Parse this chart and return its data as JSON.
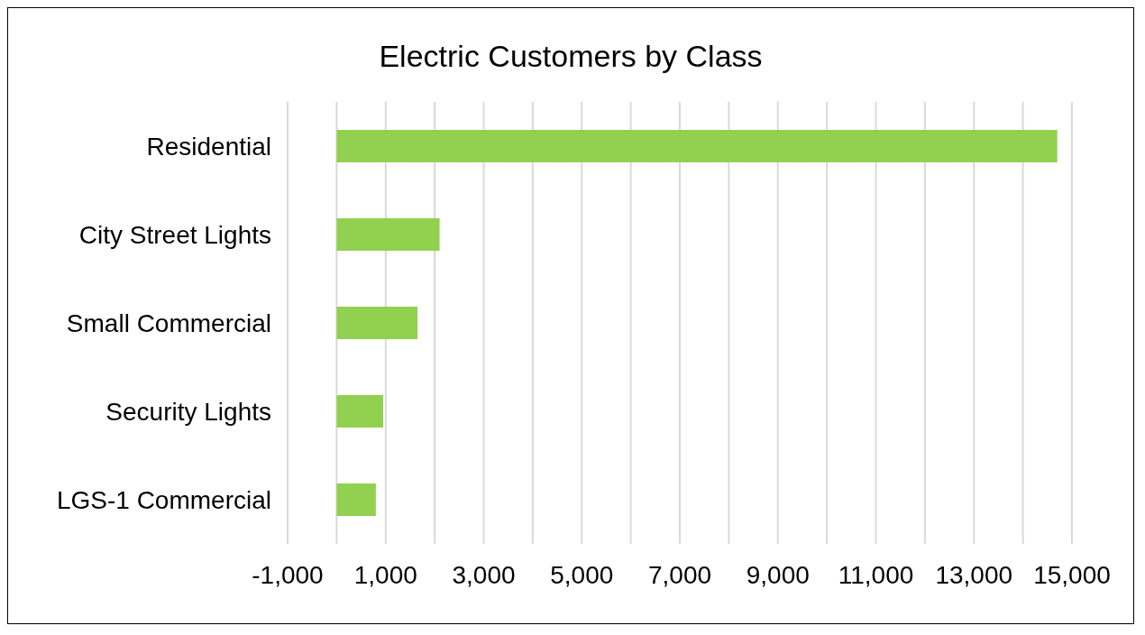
{
  "chart_data": {
    "type": "bar",
    "orientation": "horizontal",
    "title": "Electric Customers by Class",
    "categories": [
      "Residential",
      "City Street Lights",
      "Small Commercial",
      "Security Lights",
      "LGS-1 Commercial"
    ],
    "values": [
      14700,
      2100,
      1650,
      950,
      800
    ],
    "color": "#92d050",
    "xlim": [
      -1000,
      15000
    ],
    "xticks": [
      {
        "value": -1000,
        "label": "-1,000"
      },
      {
        "value": 0,
        "label": null
      },
      {
        "value": 1000,
        "label": "1,000"
      },
      {
        "value": 2000,
        "label": null
      },
      {
        "value": 3000,
        "label": "3,000"
      },
      {
        "value": 4000,
        "label": null
      },
      {
        "value": 5000,
        "label": "5,000"
      },
      {
        "value": 6000,
        "label": null
      },
      {
        "value": 7000,
        "label": "7,000"
      },
      {
        "value": 8000,
        "label": null
      },
      {
        "value": 9000,
        "label": "9,000"
      },
      {
        "value": 10000,
        "label": null
      },
      {
        "value": 11000,
        "label": "11,000"
      },
      {
        "value": 12000,
        "label": null
      },
      {
        "value": 13000,
        "label": "13,000"
      },
      {
        "value": 14000,
        "label": null
      },
      {
        "value": 15000,
        "label": "15,000"
      }
    ],
    "grid": "x",
    "legend": false
  }
}
